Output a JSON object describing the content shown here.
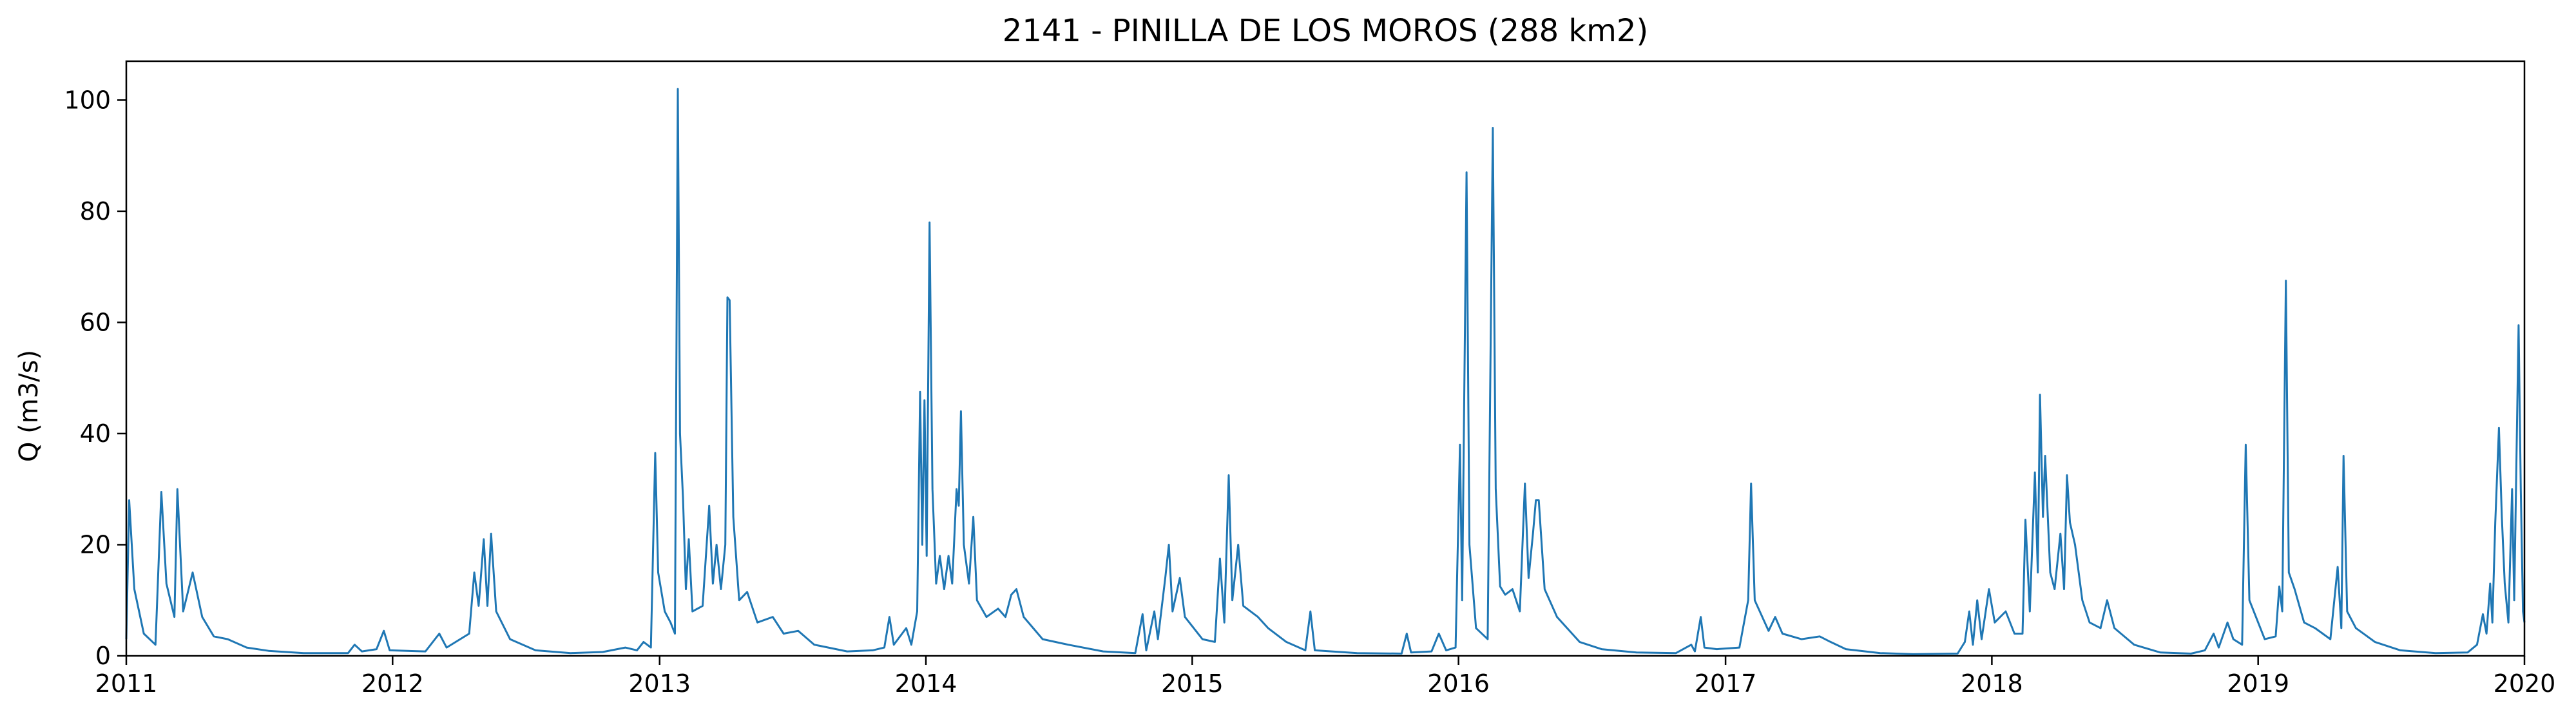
{
  "chart_data": {
    "type": "line",
    "title": "2141 - PINILLA DE LOS MOROS (288 km2)",
    "xlabel": "",
    "ylabel": "Q (m3/s)",
    "xlim": [
      "2011-01-01",
      "2020-01-01"
    ],
    "ylim": [
      0,
      107
    ],
    "grid": false,
    "legend": "none",
    "x_ticks": [
      "2011",
      "2012",
      "2013",
      "2014",
      "2015",
      "2016",
      "2017",
      "2018",
      "2019",
      "2020"
    ],
    "y_ticks": [
      "0",
      "20",
      "40",
      "60",
      "80",
      "100"
    ],
    "series": [
      {
        "color": "#1f77b4",
        "points": [
          [
            "2011-01-01",
            3.0
          ],
          [
            "2011-01-05",
            28.0
          ],
          [
            "2011-01-12",
            12.0
          ],
          [
            "2011-01-25",
            4.0
          ],
          [
            "2011-02-10",
            2.0
          ],
          [
            "2011-02-18",
            29.5
          ],
          [
            "2011-02-25",
            13.0
          ],
          [
            "2011-03-08",
            7.0
          ],
          [
            "2011-03-12",
            30.0
          ],
          [
            "2011-03-20",
            8.0
          ],
          [
            "2011-04-02",
            15.0
          ],
          [
            "2011-04-15",
            7.0
          ],
          [
            "2011-05-01",
            3.5
          ],
          [
            "2011-05-20",
            3.0
          ],
          [
            "2011-06-15",
            1.5
          ],
          [
            "2011-07-15",
            0.9
          ],
          [
            "2011-09-01",
            0.5
          ],
          [
            "2011-11-01",
            0.5
          ],
          [
            "2011-11-10",
            2.0
          ],
          [
            "2011-11-20",
            0.8
          ],
          [
            "2011-12-10",
            1.2
          ],
          [
            "2011-12-20",
            4.5
          ],
          [
            "2011-12-28",
            1.0
          ],
          [
            "2012-02-15",
            0.8
          ],
          [
            "2012-03-05",
            4.0
          ],
          [
            "2012-03-15",
            1.5
          ],
          [
            "2012-04-15",
            4.0
          ],
          [
            "2012-04-22",
            15.0
          ],
          [
            "2012-04-28",
            9.0
          ],
          [
            "2012-05-05",
            21.0
          ],
          [
            "2012-05-10",
            9.0
          ],
          [
            "2012-05-15",
            22.0
          ],
          [
            "2012-05-22",
            8.0
          ],
          [
            "2012-06-10",
            3.0
          ],
          [
            "2012-07-15",
            1.0
          ],
          [
            "2012-09-01",
            0.5
          ],
          [
            "2012-10-15",
            0.7
          ],
          [
            "2012-11-15",
            1.5
          ],
          [
            "2012-12-01",
            1.0
          ],
          [
            "2012-12-10",
            2.5
          ],
          [
            "2012-12-20",
            1.5
          ],
          [
            "2012-12-26",
            36.5
          ],
          [
            "2012-12-30",
            15.0
          ],
          [
            "2013-01-08",
            8.0
          ],
          [
            "2013-01-16",
            6.0
          ],
          [
            "2013-01-22",
            4.0
          ],
          [
            "2013-01-26",
            102.0
          ],
          [
            "2013-01-29",
            40.0
          ],
          [
            "2013-02-02",
            28.5
          ],
          [
            "2013-02-06",
            12.0
          ],
          [
            "2013-02-10",
            21.0
          ],
          [
            "2013-02-15",
            8.0
          ],
          [
            "2013-03-01",
            9.0
          ],
          [
            "2013-03-10",
            27.0
          ],
          [
            "2013-03-15",
            13.0
          ],
          [
            "2013-03-20",
            20.0
          ],
          [
            "2013-03-26",
            12.0
          ],
          [
            "2013-04-01",
            20.0
          ],
          [
            "2013-04-04",
            64.5
          ],
          [
            "2013-04-07",
            64.0
          ],
          [
            "2013-04-12",
            25.0
          ],
          [
            "2013-04-20",
            10.0
          ],
          [
            "2013-05-01",
            11.5
          ],
          [
            "2013-05-15",
            6.0
          ],
          [
            "2013-06-05",
            7.0
          ],
          [
            "2013-06-20",
            4.0
          ],
          [
            "2013-07-10",
            4.5
          ],
          [
            "2013-08-01",
            2.0
          ],
          [
            "2013-09-15",
            0.8
          ],
          [
            "2013-10-20",
            1.0
          ],
          [
            "2013-11-05",
            1.5
          ],
          [
            "2013-11-12",
            7.0
          ],
          [
            "2013-11-18",
            2.0
          ],
          [
            "2013-12-05",
            5.0
          ],
          [
            "2013-12-12",
            2.0
          ],
          [
            "2013-12-20",
            8.0
          ],
          [
            "2013-12-24",
            47.5
          ],
          [
            "2013-12-27",
            20.0
          ],
          [
            "2013-12-30",
            46.0
          ],
          [
            "2014-01-02",
            18.0
          ],
          [
            "2014-01-06",
            78.0
          ],
          [
            "2014-01-10",
            30.0
          ],
          [
            "2014-01-15",
            13.0
          ],
          [
            "2014-01-20",
            18.0
          ],
          [
            "2014-01-26",
            12.0
          ],
          [
            "2014-02-01",
            18.0
          ],
          [
            "2014-02-06",
            13.0
          ],
          [
            "2014-02-12",
            30.0
          ],
          [
            "2014-02-15",
            27.0
          ],
          [
            "2014-02-18",
            44.0
          ],
          [
            "2014-02-22",
            20.0
          ],
          [
            "2014-03-01",
            13.0
          ],
          [
            "2014-03-07",
            25.0
          ],
          [
            "2014-03-12",
            10.0
          ],
          [
            "2014-03-25",
            7.0
          ],
          [
            "2014-04-10",
            8.5
          ],
          [
            "2014-04-20",
            7.0
          ],
          [
            "2014-04-28",
            11.0
          ],
          [
            "2014-05-05",
            12.0
          ],
          [
            "2014-05-15",
            7.0
          ],
          [
            "2014-06-10",
            3.0
          ],
          [
            "2014-07-15",
            2.0
          ],
          [
            "2014-09-01",
            0.8
          ],
          [
            "2014-10-15",
            0.5
          ],
          [
            "2014-10-25",
            7.5
          ],
          [
            "2014-10-30",
            1.0
          ],
          [
            "2014-11-10",
            8.0
          ],
          [
            "2014-11-15",
            3.0
          ],
          [
            "2014-11-25",
            14.0
          ],
          [
            "2014-11-30",
            20.0
          ],
          [
            "2014-12-05",
            8.0
          ],
          [
            "2014-12-15",
            14.0
          ],
          [
            "2014-12-22",
            7.0
          ],
          [
            "2015-01-15",
            3.0
          ],
          [
            "2015-02-01",
            2.5
          ],
          [
            "2015-02-08",
            17.5
          ],
          [
            "2015-02-14",
            6.0
          ],
          [
            "2015-02-20",
            32.5
          ],
          [
            "2015-02-25",
            10.0
          ],
          [
            "2015-03-05",
            20.0
          ],
          [
            "2015-03-12",
            9.0
          ],
          [
            "2015-04-01",
            7.0
          ],
          [
            "2015-04-15",
            5.0
          ],
          [
            "2015-05-10",
            2.5
          ],
          [
            "2015-06-05",
            1.0
          ],
          [
            "2015-06-12",
            8.0
          ],
          [
            "2015-06-18",
            1.0
          ],
          [
            "2015-08-15",
            0.5
          ],
          [
            "2015-10-15",
            0.4
          ],
          [
            "2015-10-22",
            4.0
          ],
          [
            "2015-10-28",
            0.6
          ],
          [
            "2015-11-25",
            0.8
          ],
          [
            "2015-12-05",
            4.0
          ],
          [
            "2015-12-15",
            1.0
          ],
          [
            "2015-12-28",
            1.5
          ],
          [
            "2016-01-03",
            38.0
          ],
          [
            "2016-01-06",
            10.0
          ],
          [
            "2016-01-12",
            87.0
          ],
          [
            "2016-01-16",
            20.0
          ],
          [
            "2016-01-25",
            5.0
          ],
          [
            "2016-02-10",
            3.0
          ],
          [
            "2016-02-17",
            95.0
          ],
          [
            "2016-02-21",
            30.0
          ],
          [
            "2016-02-27",
            12.5
          ],
          [
            "2016-03-05",
            11.0
          ],
          [
            "2016-03-15",
            12.0
          ],
          [
            "2016-03-25",
            8.0
          ],
          [
            "2016-04-01",
            31.0
          ],
          [
            "2016-04-06",
            14.0
          ],
          [
            "2016-04-12",
            22.0
          ],
          [
            "2016-04-16",
            28.0
          ],
          [
            "2016-04-20",
            28.0
          ],
          [
            "2016-04-28",
            12.0
          ],
          [
            "2016-05-15",
            7.0
          ],
          [
            "2016-06-15",
            2.5
          ],
          [
            "2016-07-15",
            1.2
          ],
          [
            "2016-09-01",
            0.6
          ],
          [
            "2016-10-25",
            0.5
          ],
          [
            "2016-11-15",
            2.0
          ],
          [
            "2016-11-20",
            0.8
          ],
          [
            "2016-11-28",
            7.0
          ],
          [
            "2016-12-03",
            1.5
          ],
          [
            "2016-12-20",
            1.2
          ],
          [
            "2017-01-20",
            1.5
          ],
          [
            "2017-02-01",
            10.0
          ],
          [
            "2017-02-05",
            31.0
          ],
          [
            "2017-02-10",
            10.0
          ],
          [
            "2017-03-01",
            4.5
          ],
          [
            "2017-03-10",
            7.0
          ],
          [
            "2017-03-20",
            4.0
          ],
          [
            "2017-04-15",
            3.0
          ],
          [
            "2017-05-10",
            3.5
          ],
          [
            "2017-05-25",
            2.5
          ],
          [
            "2017-06-15",
            1.2
          ],
          [
            "2017-08-01",
            0.5
          ],
          [
            "2017-09-15",
            0.3
          ],
          [
            "2017-11-15",
            0.4
          ],
          [
            "2017-11-25",
            2.5
          ],
          [
            "2017-12-01",
            8.0
          ],
          [
            "2017-12-06",
            2.0
          ],
          [
            "2017-12-12",
            10.0
          ],
          [
            "2017-12-18",
            3.0
          ],
          [
            "2017-12-28",
            12.0
          ],
          [
            "2018-01-05",
            6.0
          ],
          [
            "2018-01-20",
            8.0
          ],
          [
            "2018-02-01",
            4.0
          ],
          [
            "2018-02-12",
            4.0
          ],
          [
            "2018-02-16",
            24.5
          ],
          [
            "2018-02-22",
            8.0
          ],
          [
            "2018-03-01",
            33.0
          ],
          [
            "2018-03-05",
            15.0
          ],
          [
            "2018-03-08",
            47.0
          ],
          [
            "2018-03-12",
            25.0
          ],
          [
            "2018-03-15",
            36.0
          ],
          [
            "2018-03-22",
            15.0
          ],
          [
            "2018-03-28",
            12.0
          ],
          [
            "2018-04-05",
            22.0
          ],
          [
            "2018-04-10",
            12.0
          ],
          [
            "2018-04-14",
            32.5
          ],
          [
            "2018-04-18",
            24.0
          ],
          [
            "2018-04-25",
            20.0
          ],
          [
            "2018-05-05",
            10.0
          ],
          [
            "2018-05-15",
            6.0
          ],
          [
            "2018-05-30",
            5.0
          ],
          [
            "2018-06-08",
            10.0
          ],
          [
            "2018-06-18",
            5.0
          ],
          [
            "2018-07-15",
            2.0
          ],
          [
            "2018-08-20",
            0.6
          ],
          [
            "2018-10-01",
            0.4
          ],
          [
            "2018-10-20",
            1.0
          ],
          [
            "2018-11-01",
            4.0
          ],
          [
            "2018-11-08",
            1.5
          ],
          [
            "2018-11-20",
            6.0
          ],
          [
            "2018-11-28",
            3.0
          ],
          [
            "2018-12-10",
            2.0
          ],
          [
            "2018-12-15",
            38.0
          ],
          [
            "2018-12-20",
            10.0
          ],
          [
            "2019-01-10",
            3.0
          ],
          [
            "2019-01-25",
            3.5
          ],
          [
            "2019-01-30",
            12.5
          ],
          [
            "2019-02-03",
            8.0
          ],
          [
            "2019-02-08",
            67.5
          ],
          [
            "2019-02-12",
            15.0
          ],
          [
            "2019-02-20",
            12.0
          ],
          [
            "2019-03-05",
            6.0
          ],
          [
            "2019-03-20",
            5.0
          ],
          [
            "2019-04-10",
            3.0
          ],
          [
            "2019-04-20",
            16.0
          ],
          [
            "2019-04-25",
            5.0
          ],
          [
            "2019-04-28",
            36.0
          ],
          [
            "2019-05-03",
            8.0
          ],
          [
            "2019-05-15",
            5.0
          ],
          [
            "2019-06-10",
            2.5
          ],
          [
            "2019-07-15",
            1.0
          ],
          [
            "2019-09-01",
            0.5
          ],
          [
            "2019-10-15",
            0.6
          ],
          [
            "2019-10-28",
            2.0
          ],
          [
            "2019-11-05",
            7.5
          ],
          [
            "2019-11-10",
            4.0
          ],
          [
            "2019-11-15",
            13.0
          ],
          [
            "2019-11-18",
            6.0
          ],
          [
            "2019-11-22",
            24.0
          ],
          [
            "2019-11-27",
            41.0
          ],
          [
            "2019-12-01",
            25.0
          ],
          [
            "2019-12-05",
            13.0
          ],
          [
            "2019-12-10",
            6.0
          ],
          [
            "2019-12-15",
            30.0
          ],
          [
            "2019-12-18",
            10.0
          ],
          [
            "2019-12-24",
            59.5
          ],
          [
            "2019-12-27",
            30.0
          ],
          [
            "2019-12-30",
            8.0
          ],
          [
            "2020-01-01",
            6.0
          ]
        ]
      }
    ]
  }
}
